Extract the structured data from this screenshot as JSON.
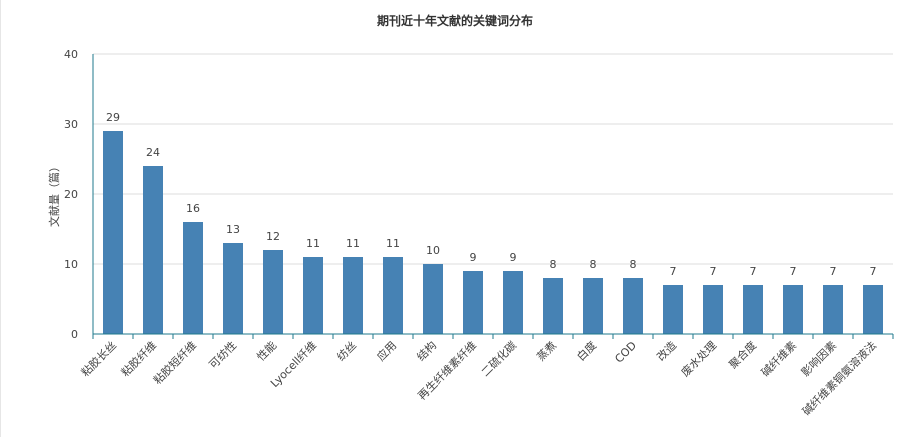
{
  "chart_data": {
    "type": "bar",
    "title": "期刊近十年文献的关键词分布",
    "xlabel": "",
    "ylabel": "文献量（篇）",
    "ylim": [
      0,
      40
    ],
    "yticks": [
      0,
      10,
      20,
      30,
      40
    ],
    "grid": true,
    "legend": "none",
    "categories": [
      "粘胶长丝",
      "粘胶纤维",
      "粘胶短纤维",
      "可纺性",
      "性能",
      "Lyocell纤维",
      "纺丝",
      "应用",
      "结构",
      "再生纤维素纤维",
      "二硫化碳",
      "蒸煮",
      "白度",
      "COD",
      "改造",
      "废水处理",
      "聚合度",
      "碱纤维素",
      "影响因素",
      "碱纤维素铜氨溶液法"
    ],
    "values": [
      29,
      24,
      16,
      13,
      12,
      11,
      11,
      11,
      10,
      9,
      9,
      8,
      8,
      8,
      7,
      7,
      7,
      7,
      7,
      7
    ],
    "colors": {
      "bar": "#4682b4",
      "axis": "#1f7a8c",
      "grid": "#dddddd",
      "text": "#444444"
    }
  }
}
